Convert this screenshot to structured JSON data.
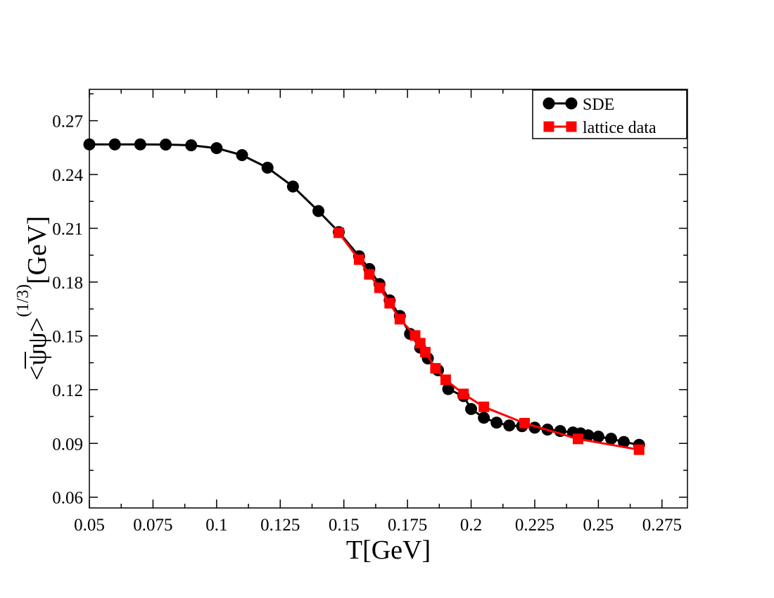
{
  "chart_data": {
    "type": "line",
    "title": "",
    "xlabel": "T[GeV]",
    "ylabel": {
      "bracket_open": "<",
      "psi_bar": "ψ",
      "psi": "ψ",
      "bracket_close": ">",
      "exponent": "(1/3)",
      "unit": "[GeV]"
    },
    "xlim": [
      0.05,
      0.285
    ],
    "ylim": [
      0.054,
      0.2875
    ],
    "xticks": [
      0.05,
      0.075,
      0.1,
      0.125,
      0.15,
      0.175,
      0.2,
      0.225,
      0.25,
      0.275
    ],
    "xtick_labels": [
      "0.05",
      "0.075",
      "0.1",
      "0.125",
      "0.15",
      "0.175",
      "0.2",
      "0.225",
      "0.25",
      "0.275"
    ],
    "yticks": [
      0.06,
      0.09,
      0.12,
      0.15,
      0.18,
      0.21,
      0.24,
      0.27
    ],
    "ytick_labels": [
      "0.06",
      "0.09",
      "0.12",
      "0.15",
      "0.18",
      "0.21",
      "0.24",
      "0.27"
    ],
    "grid": false,
    "legend_position": "top-right",
    "series": [
      {
        "name": "SDE",
        "color": "#000000",
        "marker": "circle",
        "x": [
          0.05,
          0.06,
          0.07,
          0.08,
          0.09,
          0.1,
          0.11,
          0.12,
          0.13,
          0.14,
          0.148,
          0.156,
          0.16,
          0.164,
          0.168,
          0.172,
          0.176,
          0.18,
          0.183,
          0.187,
          0.191,
          0.197,
          0.2,
          0.205,
          0.21,
          0.215,
          0.22,
          0.225,
          0.23,
          0.235,
          0.24,
          0.243,
          0.246,
          0.25,
          0.255,
          0.26,
          0.266
        ],
        "values": [
          0.2568,
          0.2568,
          0.2568,
          0.2567,
          0.2563,
          0.2547,
          0.2508,
          0.2438,
          0.2333,
          0.2196,
          0.2079,
          0.1944,
          0.1873,
          0.1789,
          0.1698,
          0.1611,
          0.1511,
          0.1434,
          0.1374,
          0.1308,
          0.1203,
          0.1164,
          0.1092,
          0.1043,
          0.1016,
          0.1,
          0.0996,
          0.0988,
          0.0977,
          0.0969,
          0.0961,
          0.0956,
          0.0945,
          0.0938,
          0.0926,
          0.0908,
          0.0892
        ]
      },
      {
        "name": "lattice data",
        "color": "#ff0000",
        "marker": "square",
        "x": [
          0.148,
          0.156,
          0.16,
          0.164,
          0.168,
          0.172,
          0.178,
          0.18,
          0.182,
          0.186,
          0.19,
          0.197,
          0.205,
          0.221,
          0.242,
          0.266
        ],
        "values": [
          0.2075,
          0.1925,
          0.1843,
          0.1768,
          0.1682,
          0.1593,
          0.1502,
          0.1459,
          0.1409,
          0.1319,
          0.1255,
          0.1176,
          0.1104,
          0.1013,
          0.0925,
          0.0865
        ]
      }
    ]
  }
}
